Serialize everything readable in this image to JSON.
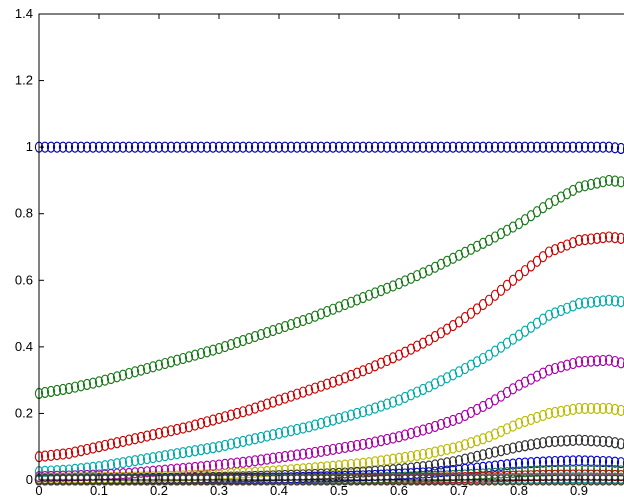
{
  "chart_data": {
    "type": "scatter",
    "marker": "circle-open",
    "title": "",
    "xlabel": "",
    "ylabel": "",
    "xlim": [
      0,
      1
    ],
    "ylim": [
      0,
      1.4
    ],
    "xticks": [
      "0",
      "0.1",
      "0.2",
      "0.3",
      "0.4",
      "0.5",
      "0.6",
      "0.7",
      "0.8",
      "0.9",
      "1"
    ],
    "yticks": [
      "0",
      "0.2",
      "0.4",
      "0.6",
      "0.8",
      "1",
      "1.2",
      "1.4"
    ],
    "grid": false,
    "legend": false,
    "x": [
      0,
      0.05,
      0.1,
      0.15,
      0.2,
      0.25,
      0.3,
      0.35,
      0.4,
      0.45,
      0.5,
      0.55,
      0.6,
      0.65,
      0.7,
      0.75,
      0.8,
      0.85,
      0.9,
      0.95,
      1.0
    ],
    "series": [
      {
        "color": "#0000aa",
        "values": [
          1.0,
          1.0,
          1.0,
          1.0,
          1.0,
          1.0,
          1.0,
          1.0,
          1.0,
          1.0,
          1.0,
          1.0,
          1.0,
          1.0,
          1.0,
          1.0,
          1.0,
          1.0,
          1.0,
          1.0,
          0.99
        ]
      },
      {
        "color": "#1a7a1a",
        "values": [
          0.26,
          0.275,
          0.295,
          0.32,
          0.345,
          0.37,
          0.395,
          0.425,
          0.455,
          0.485,
          0.52,
          0.555,
          0.59,
          0.63,
          0.675,
          0.72,
          0.77,
          0.83,
          0.88,
          0.9,
          0.89
        ]
      },
      {
        "color": "#cc0000",
        "values": [
          0.07,
          0.08,
          0.1,
          0.12,
          0.14,
          0.16,
          0.185,
          0.21,
          0.24,
          0.27,
          0.3,
          0.335,
          0.375,
          0.42,
          0.475,
          0.54,
          0.615,
          0.685,
          0.72,
          0.73,
          0.72
        ]
      },
      {
        "color": "#00aaaa",
        "values": [
          0.025,
          0.03,
          0.04,
          0.055,
          0.07,
          0.085,
          0.1,
          0.12,
          0.14,
          0.16,
          0.185,
          0.21,
          0.24,
          0.28,
          0.325,
          0.375,
          0.435,
          0.495,
          0.53,
          0.54,
          0.53
        ]
      },
      {
        "color": "#aa00aa",
        "values": [
          0.01,
          0.012,
          0.015,
          0.02,
          0.028,
          0.036,
          0.045,
          0.055,
          0.068,
          0.08,
          0.095,
          0.11,
          0.13,
          0.155,
          0.185,
          0.23,
          0.285,
          0.33,
          0.355,
          0.36,
          0.34
        ]
      },
      {
        "color": "#bbbb00",
        "values": [
          0.005,
          0.006,
          0.007,
          0.008,
          0.01,
          0.013,
          0.017,
          0.022,
          0.028,
          0.035,
          0.043,
          0.052,
          0.065,
          0.08,
          0.1,
          0.13,
          0.17,
          0.2,
          0.215,
          0.215,
          0.2
        ]
      },
      {
        "color": "#333333",
        "values": [
          0.003,
          0.003,
          0.004,
          0.004,
          0.005,
          0.006,
          0.008,
          0.01,
          0.013,
          0.016,
          0.02,
          0.025,
          0.032,
          0.042,
          0.058,
          0.08,
          0.1,
          0.115,
          0.12,
          0.115,
          0.1
        ]
      },
      {
        "color": "#0000dd",
        "values": [
          0.002,
          0.002,
          0.002,
          0.002,
          0.003,
          0.003,
          0.004,
          0.005,
          0.006,
          0.008,
          0.01,
          0.013,
          0.017,
          0.022,
          0.03,
          0.04,
          0.05,
          0.055,
          0.058,
          0.055,
          0.048
        ]
      },
      {
        "color": "#1a7a1a",
        "values": [
          0.001,
          0.001,
          0.001,
          0.001,
          0.001,
          0.002,
          0.002,
          0.002,
          0.003,
          0.004,
          0.005,
          0.006,
          0.008,
          0.01,
          0.014,
          0.019,
          0.024,
          0.028,
          0.03,
          0.029,
          0.025
        ]
      },
      {
        "color": "#cc0000",
        "values": [
          0,
          0,
          0,
          0,
          0,
          0.001,
          0.001,
          0.001,
          0.001,
          0.002,
          0.002,
          0.003,
          0.004,
          0.005,
          0.007,
          0.009,
          0.012,
          0.014,
          0.015,
          0.014,
          0.012
        ]
      },
      {
        "color": "#00aaaa",
        "values": [
          0,
          0,
          0,
          0,
          0,
          0,
          0,
          0,
          0.001,
          0.001,
          0.001,
          0.001,
          0.002,
          0.002,
          0.003,
          0.004,
          0.005,
          0.006,
          0.007,
          0.006,
          0.005
        ]
      },
      {
        "color": "#aa00aa",
        "values": [
          0,
          0,
          0,
          0,
          0,
          0,
          0,
          0,
          0,
          0,
          0,
          0.001,
          0.001,
          0.001,
          0.001,
          0.002,
          0.002,
          0.003,
          0.003,
          0.003,
          0.002
        ]
      },
      {
        "color": "#bbbb00",
        "values": [
          0,
          0,
          0,
          0,
          0,
          0,
          0,
          0,
          0,
          0,
          0,
          0,
          0,
          0,
          0,
          0.001,
          0.001,
          0.001,
          0.001,
          0.001,
          0.001
        ]
      },
      {
        "color": "#333333",
        "values": [
          0,
          0,
          0,
          0,
          0,
          0,
          0,
          0,
          0,
          0,
          0,
          0,
          0,
          0,
          0,
          0,
          0,
          0,
          0,
          0,
          0
        ]
      }
    ]
  }
}
